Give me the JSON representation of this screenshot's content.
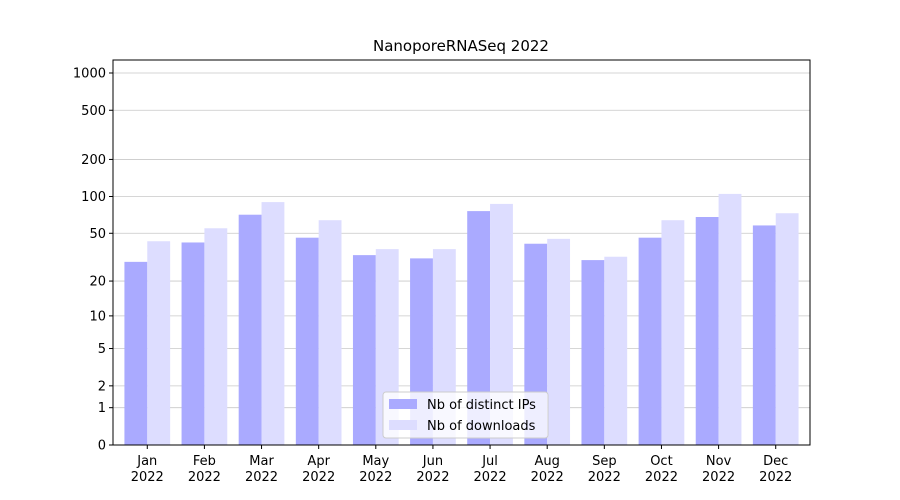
{
  "chart_data": {
    "type": "bar",
    "title": "NanoporeRNASeq 2022",
    "categories": [
      "Jan 2022",
      "Feb 2022",
      "Mar 2022",
      "Apr 2022",
      "May 2022",
      "Jun 2022",
      "Jul 2022",
      "Aug 2022",
      "Sep 2022",
      "Oct 2022",
      "Nov 2022",
      "Dec 2022"
    ],
    "series": [
      {
        "name": "Nb of distinct IPs",
        "color": "#aaaaff",
        "values": [
          29,
          42,
          71,
          46,
          33,
          31,
          76,
          41,
          30,
          46,
          68,
          58
        ]
      },
      {
        "name": "Nb of downloads",
        "color": "#ddddff",
        "values": [
          43,
          55,
          90,
          64,
          37,
          37,
          87,
          45,
          32,
          64,
          105,
          73
        ]
      }
    ],
    "yscale": "log1p",
    "ylim": [
      0,
      1273
    ],
    "yticks": [
      0,
      1,
      2,
      5,
      10,
      20,
      50,
      100,
      200,
      500,
      1000
    ],
    "grid": true,
    "legend": "lower center"
  }
}
